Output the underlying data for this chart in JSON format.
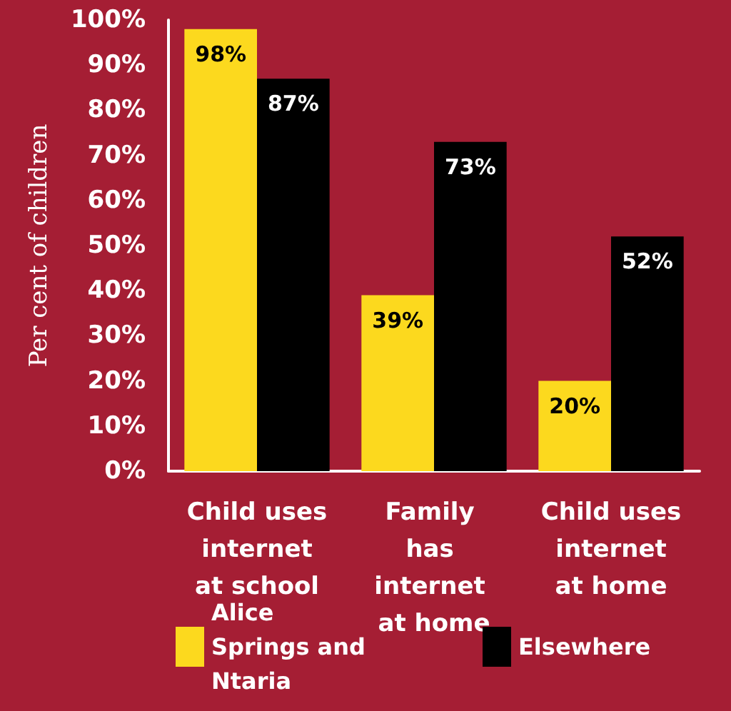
{
  "chart_data": {
    "type": "bar",
    "ylabel": "Per cent of children",
    "categories": [
      "Child uses internet at school",
      "Family has internet at home",
      "Child uses internet at home"
    ],
    "series": [
      {
        "name": "Alice Springs and Ntaria",
        "color": "#fcd91e",
        "values": [
          98,
          39,
          20
        ],
        "value_labels": [
          "98%",
          "39%",
          "20%"
        ]
      },
      {
        "name": "Elsewhere",
        "color": "#000000",
        "values": [
          87,
          73,
          52
        ],
        "value_labels": [
          "87%",
          "73%",
          "52%"
        ]
      }
    ],
    "ylim": [
      0,
      100
    ],
    "yticks": [
      {
        "value": 0,
        "label": "0%"
      },
      {
        "value": 10,
        "label": "10%"
      },
      {
        "value": 20,
        "label": "20%"
      },
      {
        "value": 30,
        "label": "30%"
      },
      {
        "value": 40,
        "label": "40%"
      },
      {
        "value": 50,
        "label": "50%"
      },
      {
        "value": 60,
        "label": "60%"
      },
      {
        "value": 70,
        "label": "70%"
      },
      {
        "value": 80,
        "label": "80%"
      },
      {
        "value": 90,
        "label": "90%"
      },
      {
        "value": 100,
        "label": "100%"
      }
    ],
    "grid": false,
    "legend": "bottom"
  }
}
